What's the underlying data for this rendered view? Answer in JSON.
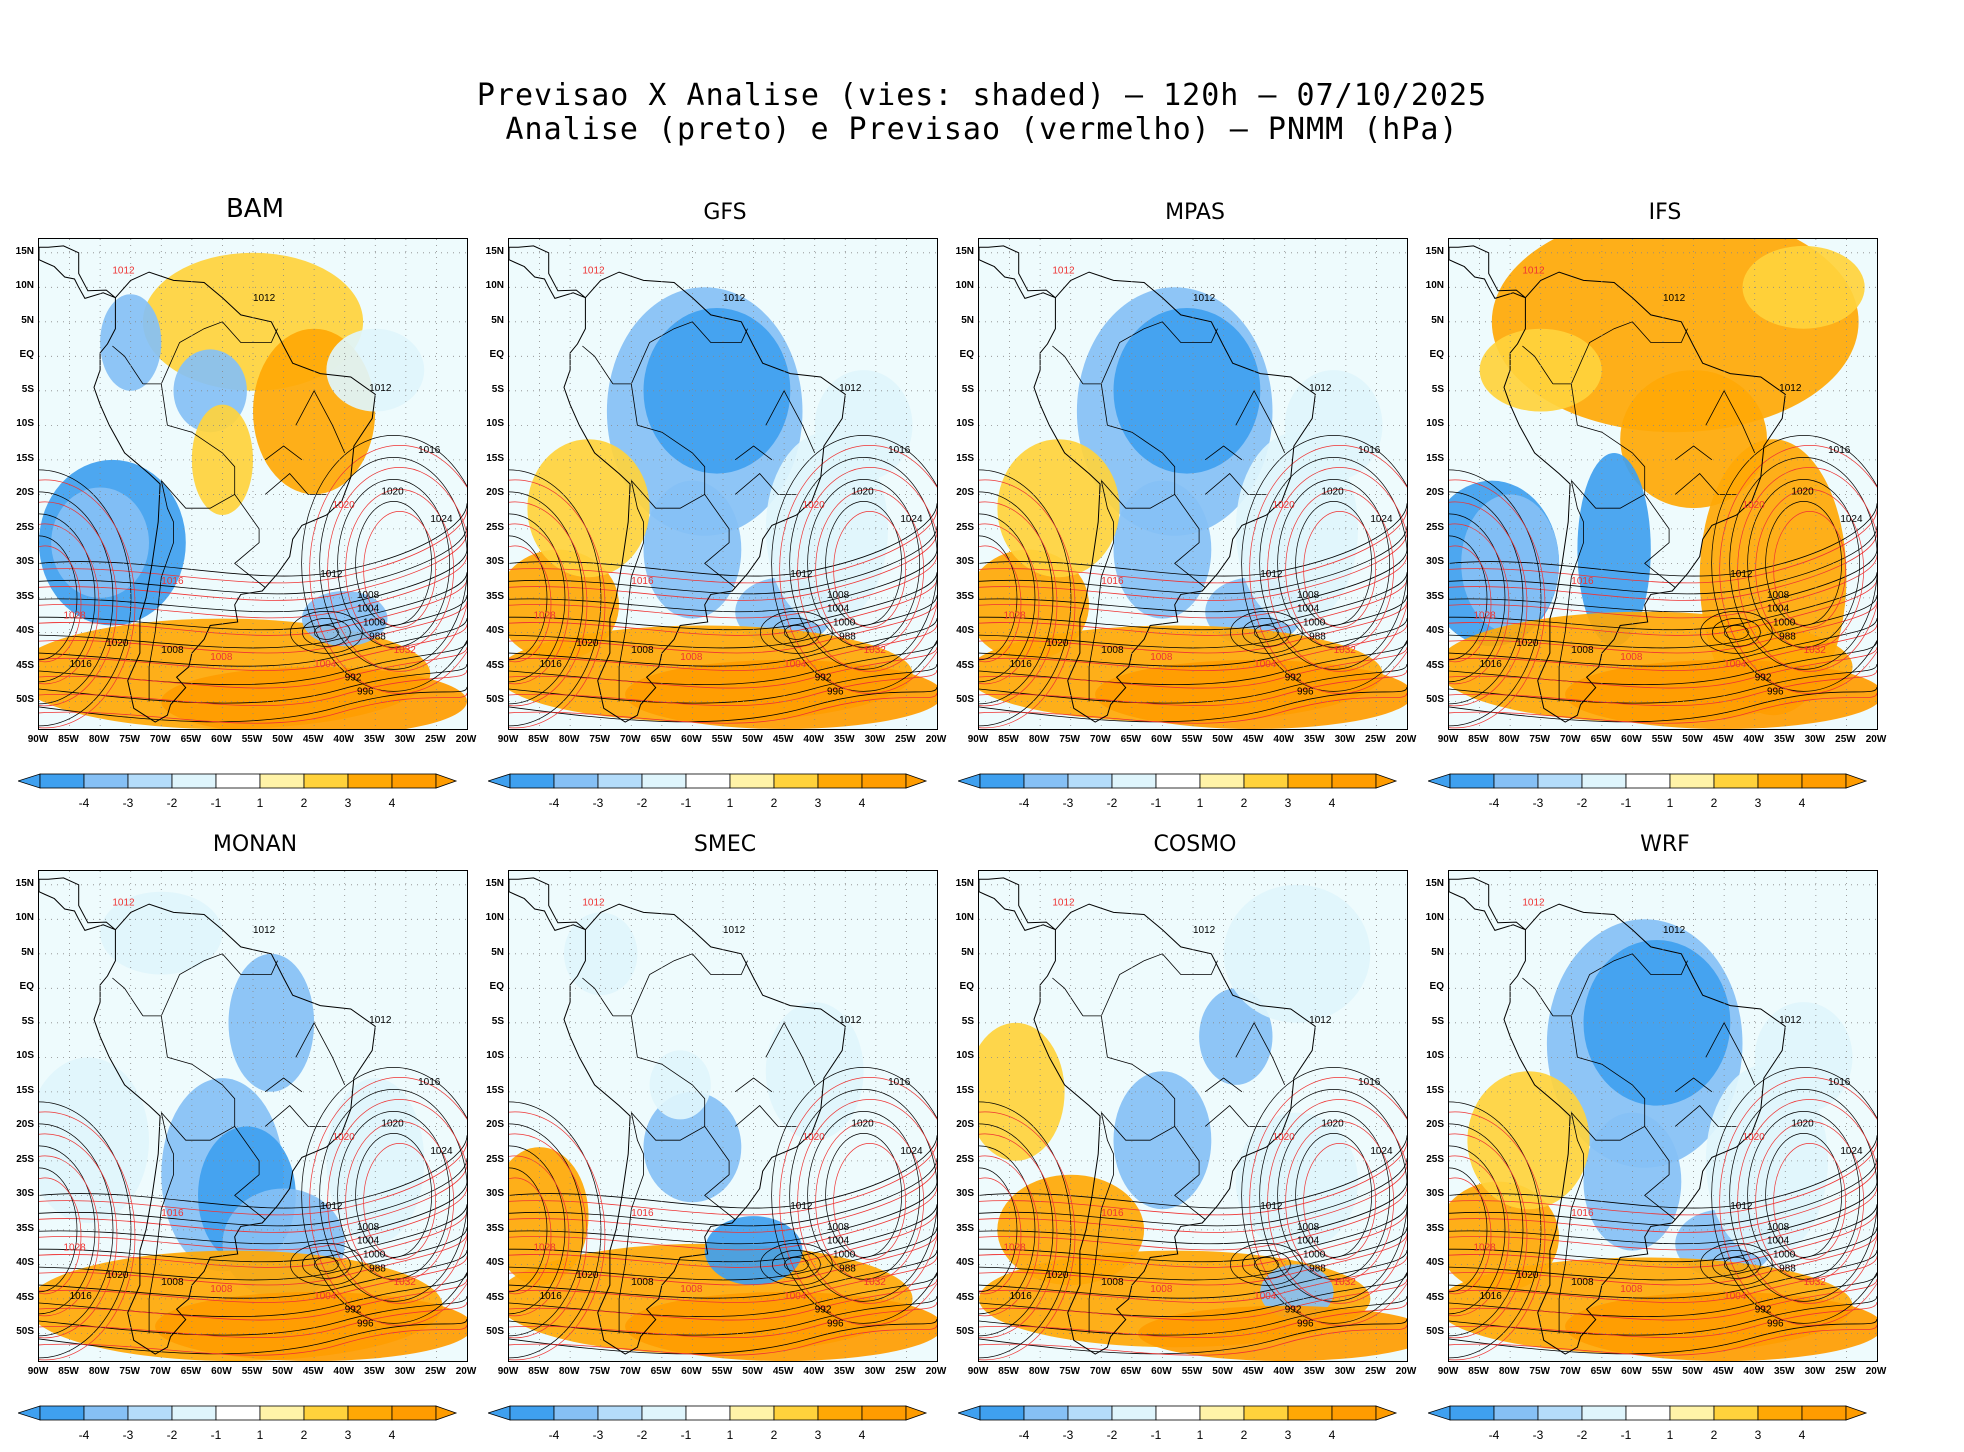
{
  "title_line1": "Previsao X Analise (vies: shaded) – 120h – 07/10/2025",
  "title_line2": "Analise (preto) e Previsao (vermelho) – PNMM (hPa)",
  "colorbar": {
    "labels": [
      "-4",
      "-3",
      "-2",
      "-1",
      "1",
      "2",
      "3",
      "4"
    ],
    "colors": [
      "#3fa0ef",
      "#86c0f5",
      "#b4dcfa",
      "#dff5fc",
      "#ffffff",
      "#fff3a8",
      "#ffd23c",
      "#ffa805",
      "#ff9c00"
    ]
  },
  "axes": {
    "lat_labels": [
      "15N",
      "10N",
      "5N",
      "EQ",
      "5S",
      "10S",
      "15S",
      "20S",
      "25S",
      "30S",
      "35S",
      "40S",
      "45S",
      "50S"
    ],
    "lon_labels": [
      "90W",
      "85W",
      "80W",
      "75W",
      "70W",
      "65W",
      "60W",
      "55W",
      "50W",
      "45W",
      "40W",
      "35W",
      "30W",
      "25W",
      "20W"
    ]
  },
  "colors": {
    "analysis_contour": "#000000",
    "forecast_contour": "#ee3333",
    "grid": "#888888",
    "negative_bias": "#5aaaf0",
    "positive_bias": "#ffa805"
  },
  "panels": [
    {
      "name": "BAM",
      "pattern": "mixed"
    },
    {
      "name": "GFS",
      "pattern": "neg_continent"
    },
    {
      "name": "MPAS",
      "pattern": "neg_continent"
    },
    {
      "name": "IFS",
      "pattern": "pos_north"
    },
    {
      "name": "MONAN",
      "pattern": "neg_south"
    },
    {
      "name": "SMEC",
      "pattern": "light"
    },
    {
      "name": "COSMO",
      "pattern": "light_neg"
    },
    {
      "name": "WRF",
      "pattern": "neg_continent"
    }
  ],
  "contour_labels": {
    "analysis": [
      "1012",
      "1016",
      "1020",
      "1024",
      "1008",
      "1004",
      "1000",
      "988",
      "992",
      "996"
    ],
    "forecast": [
      "1012",
      "1016",
      "1020",
      "1028",
      "1032",
      "1004",
      "1008"
    ]
  }
}
